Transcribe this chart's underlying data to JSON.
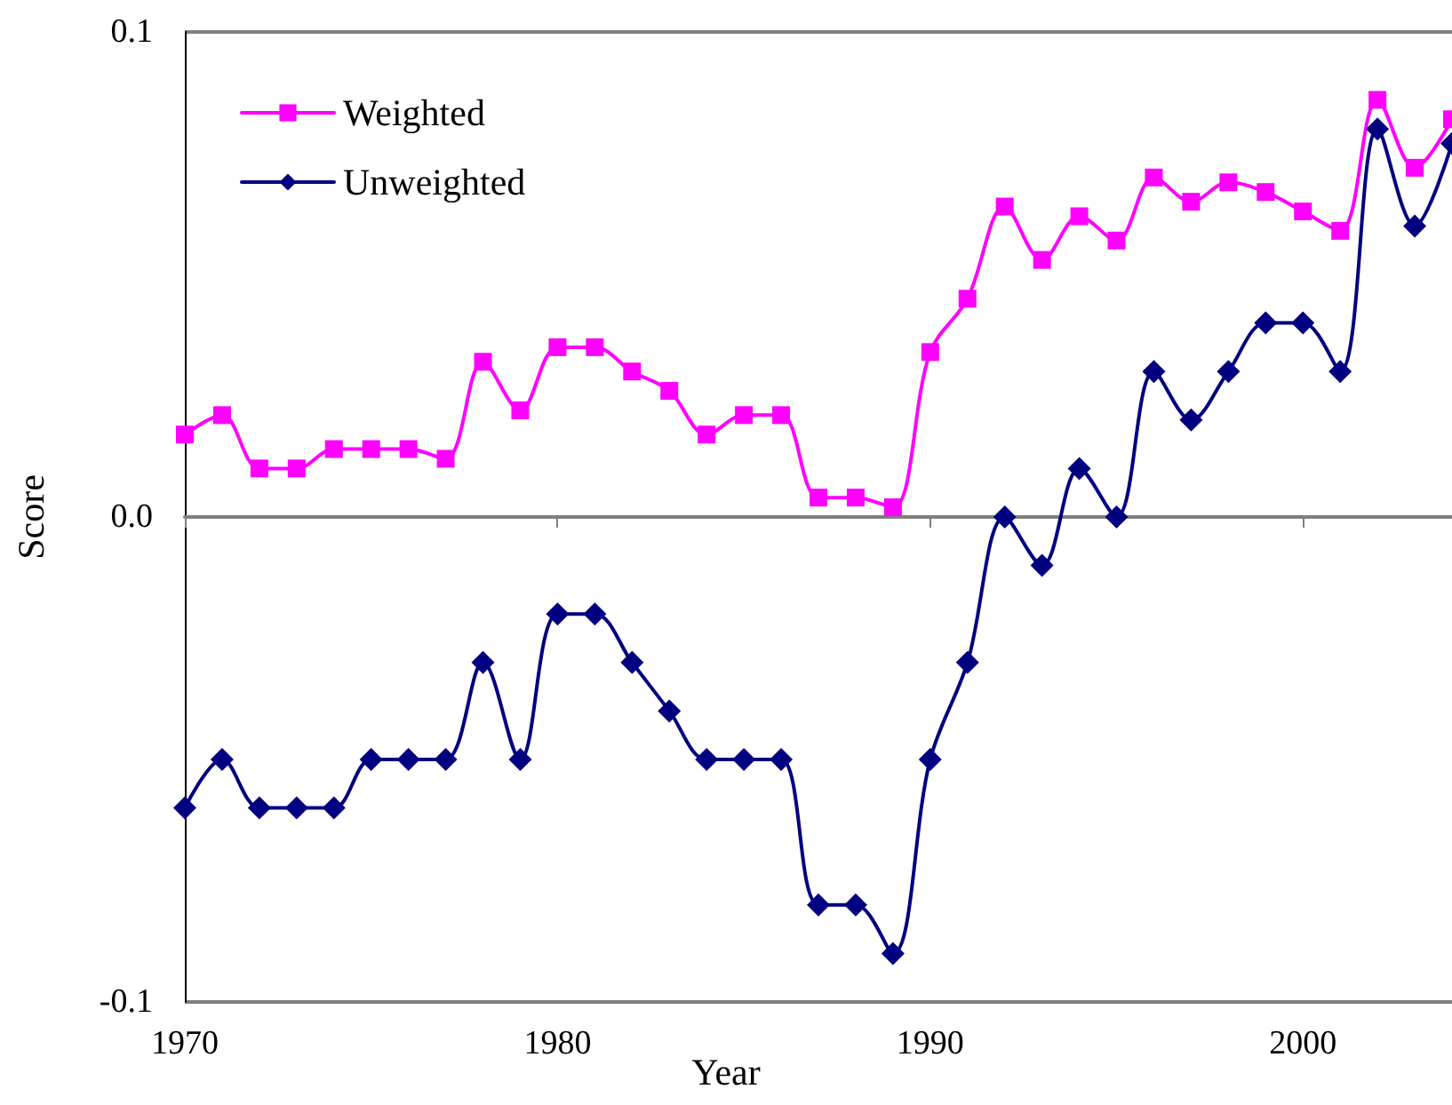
{
  "chart_data": {
    "type": "line",
    "annotations": [
      "Year"
    ],
    "ylabel": "Score",
    "x": [
      1970,
      1971,
      1972,
      1973,
      1974,
      1975,
      1976,
      1977,
      1978,
      1979,
      1980,
      1981,
      1982,
      1983,
      1984,
      1985,
      1986,
      1987,
      1988,
      1989,
      1990,
      1991,
      1992,
      1993,
      1994,
      1995,
      1996,
      1997,
      1998,
      1999,
      2000,
      2001,
      2002,
      2003,
      2004
    ],
    "series": [
      {
        "name": "Weighted",
        "color": "#ff00ff",
        "marker": "square",
        "values": [
          0.017,
          0.021,
          0.01,
          0.01,
          0.014,
          0.014,
          0.014,
          0.012,
          0.032,
          0.022,
          0.035,
          0.035,
          0.03,
          0.026,
          0.017,
          0.021,
          0.021,
          0.004,
          0.004,
          0.002,
          0.034,
          0.045,
          0.064,
          0.053,
          0.062,
          0.057,
          0.07,
          0.065,
          0.069,
          0.067,
          0.063,
          0.059,
          0.086,
          0.072,
          0.082
        ]
      },
      {
        "name": "Unweighted",
        "color": "#000080",
        "marker": "diamond",
        "values": [
          -0.06,
          -0.05,
          -0.06,
          -0.06,
          -0.06,
          -0.05,
          -0.05,
          -0.05,
          -0.03,
          -0.05,
          -0.02,
          -0.02,
          -0.03,
          -0.04,
          -0.05,
          -0.05,
          -0.05,
          -0.08,
          -0.08,
          -0.09,
          -0.05,
          -0.03,
          0.0,
          -0.01,
          0.01,
          0.0,
          0.03,
          0.02,
          0.03,
          0.04,
          0.04,
          0.03,
          0.08,
          0.06,
          0.077
        ]
      }
    ],
    "xlim": [
      1970,
      2004
    ],
    "xticks": [
      1970,
      1980,
      1990,
      2000
    ],
    "ylim": [
      -0.1,
      0.1
    ],
    "yticks": [
      -0.1,
      {
        "value": 0,
        "label": "0.0"
      },
      0.1
    ],
    "grid": "y",
    "legend": "top left",
    "line_style": "solid"
  }
}
